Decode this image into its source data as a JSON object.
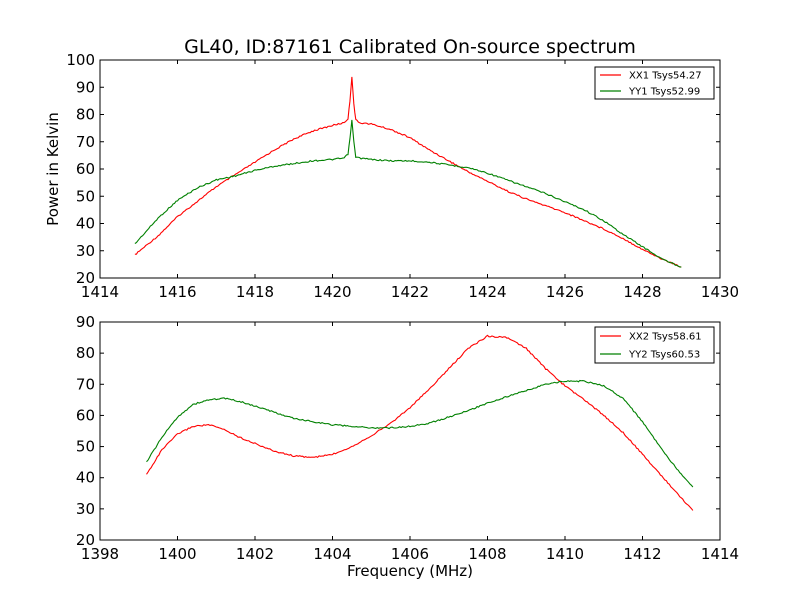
{
  "title": "GL40, ID:87161 Calibrated On-source spectrum",
  "ylabel": "Power in Kelvin",
  "xlabel": "Frequency (MHz)",
  "colors": {
    "red": "#ff0000",
    "green": "#008000"
  },
  "chart_data": [
    {
      "type": "line",
      "xlim": [
        1414,
        1430
      ],
      "ylim": [
        20,
        100
      ],
      "xticks": [
        "1414",
        "1416",
        "1418",
        "1420",
        "1422",
        "1424",
        "1426",
        "1428",
        "1430"
      ],
      "yticks": [
        "20",
        "30",
        "40",
        "50",
        "60",
        "70",
        "80",
        "90",
        "100"
      ],
      "grid": false,
      "legend_position": "top-right",
      "series": [
        {
          "name": "XX1 Tsys54.27",
          "color": "#ff0000",
          "x": [
            1414.9,
            1415.5,
            1416.0,
            1416.5,
            1417.0,
            1417.5,
            1418.0,
            1418.5,
            1419.0,
            1419.5,
            1420.0,
            1420.3,
            1420.4,
            1420.45,
            1420.5,
            1420.55,
            1420.6,
            1420.7,
            1421.0,
            1421.5,
            1422.0,
            1422.5,
            1423.0,
            1423.5,
            1424.0,
            1424.5,
            1425.0,
            1425.5,
            1426.0,
            1426.5,
            1427.0,
            1427.5,
            1428.0,
            1428.5,
            1429.0
          ],
          "y": [
            28.5,
            35.5,
            42.5,
            48.0,
            53.5,
            58.0,
            62.5,
            67.0,
            71.0,
            74.0,
            76.0,
            77.0,
            78.5,
            85.0,
            94.0,
            84.0,
            78.0,
            77.0,
            76.5,
            74.5,
            71.5,
            67.0,
            63.0,
            59.0,
            55.5,
            52.0,
            49.0,
            46.5,
            44.0,
            41.0,
            38.0,
            34.5,
            30.5,
            27.0,
            24.0
          ]
        },
        {
          "name": "YY1 Tsys52.99",
          "color": "#008000",
          "x": [
            1414.9,
            1415.5,
            1416.0,
            1416.5,
            1417.0,
            1417.5,
            1418.0,
            1418.5,
            1419.0,
            1419.5,
            1420.0,
            1420.3,
            1420.4,
            1420.45,
            1420.5,
            1420.55,
            1420.6,
            1420.7,
            1421.0,
            1421.5,
            1422.0,
            1422.5,
            1423.0,
            1423.5,
            1424.0,
            1424.5,
            1425.0,
            1425.5,
            1426.0,
            1426.5,
            1427.0,
            1427.5,
            1428.0,
            1428.5,
            1429.0
          ],
          "y": [
            32.5,
            42.0,
            48.5,
            53.0,
            56.0,
            57.5,
            59.5,
            61.0,
            62.0,
            63.0,
            63.5,
            64.0,
            65.5,
            71.0,
            78.0,
            70.0,
            64.5,
            64.0,
            63.5,
            63.0,
            63.0,
            62.5,
            61.5,
            60.5,
            58.5,
            56.0,
            53.5,
            51.0,
            48.0,
            45.0,
            41.0,
            36.0,
            31.5,
            27.0,
            24.0
          ]
        }
      ]
    },
    {
      "type": "line",
      "xlim": [
        1398,
        1414
      ],
      "ylim": [
        20,
        90
      ],
      "xticks": [
        "1398",
        "1400",
        "1402",
        "1404",
        "1406",
        "1408",
        "1410",
        "1412",
        "1414"
      ],
      "yticks": [
        "20",
        "30",
        "40",
        "50",
        "60",
        "70",
        "80",
        "90"
      ],
      "grid": false,
      "legend_position": "top-right",
      "series": [
        {
          "name": "XX2 Tsys58.61",
          "color": "#ff0000",
          "x": [
            1399.2,
            1399.6,
            1400.0,
            1400.4,
            1400.8,
            1401.2,
            1401.6,
            1402.0,
            1402.5,
            1403.0,
            1403.5,
            1404.0,
            1404.5,
            1405.0,
            1405.5,
            1406.0,
            1406.5,
            1407.0,
            1407.5,
            1408.0,
            1408.5,
            1409.0,
            1409.5,
            1410.0,
            1410.5,
            1411.0,
            1411.5,
            1412.0,
            1412.5,
            1413.0,
            1413.3
          ],
          "y": [
            41.0,
            49.0,
            54.0,
            56.5,
            57.0,
            55.5,
            53.0,
            51.0,
            48.5,
            47.0,
            46.5,
            47.5,
            50.0,
            53.5,
            57.5,
            62.5,
            68.5,
            75.0,
            81.5,
            85.5,
            85.0,
            81.5,
            75.0,
            69.5,
            65.0,
            60.0,
            54.5,
            47.5,
            40.5,
            33.5,
            29.5
          ]
        },
        {
          "name": "YY2 Tsys60.53",
          "color": "#008000",
          "x": [
            1399.2,
            1399.6,
            1400.0,
            1400.4,
            1400.8,
            1401.2,
            1401.6,
            1402.0,
            1402.5,
            1403.0,
            1403.5,
            1404.0,
            1404.5,
            1405.0,
            1405.5,
            1406.0,
            1406.5,
            1407.0,
            1407.5,
            1408.0,
            1408.5,
            1409.0,
            1409.5,
            1410.0,
            1410.5,
            1411.0,
            1411.5,
            1412.0,
            1412.5,
            1413.0,
            1413.3
          ],
          "y": [
            45.0,
            53.0,
            59.5,
            63.5,
            65.0,
            65.5,
            64.5,
            63.0,
            61.0,
            59.0,
            58.0,
            57.0,
            56.5,
            56.0,
            56.0,
            56.5,
            57.5,
            59.5,
            61.5,
            64.0,
            66.0,
            68.0,
            70.0,
            71.0,
            71.0,
            69.5,
            65.5,
            58.0,
            49.0,
            41.0,
            37.0
          ]
        }
      ]
    }
  ]
}
